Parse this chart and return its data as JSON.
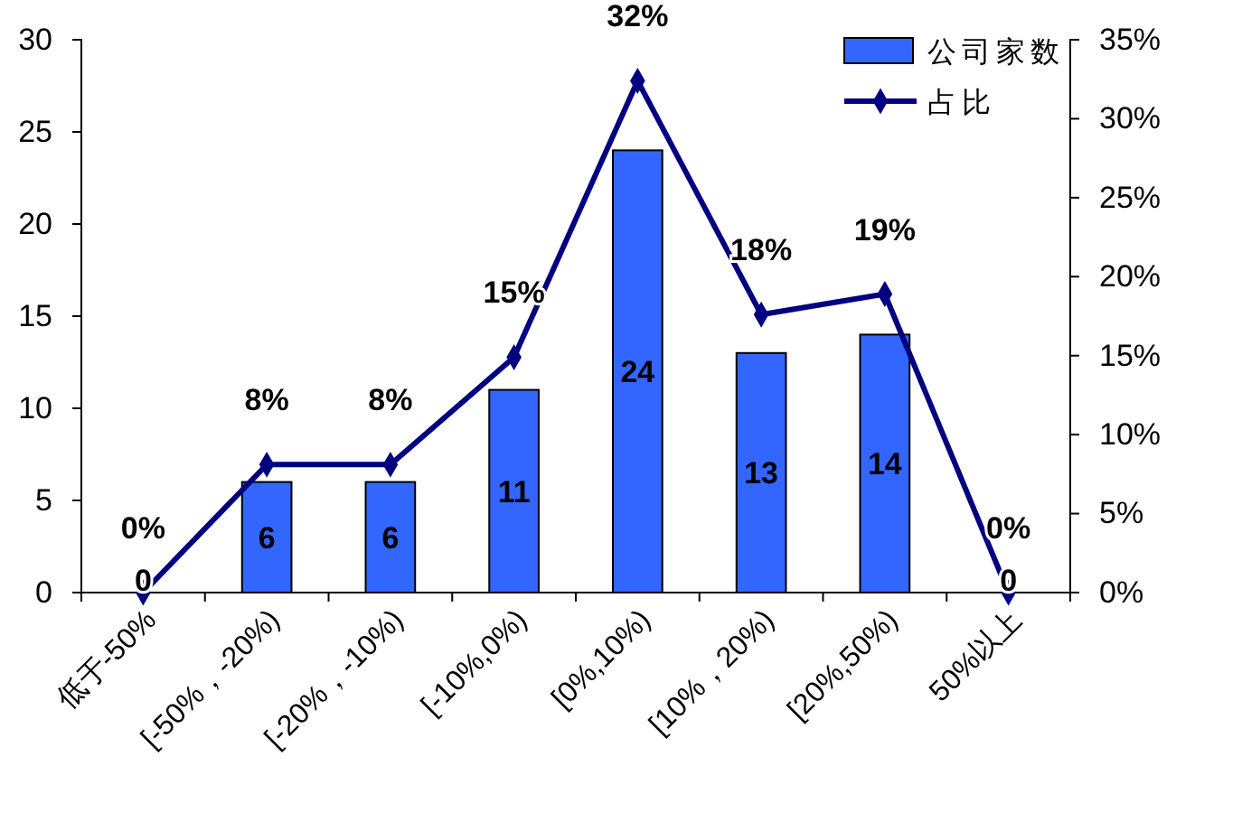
{
  "chart_data": {
    "type": "bar",
    "categories": [
      "低于-50%",
      "[-50%，-20%)",
      "[-20%，-10%)",
      "[-10%,0%)",
      "[0%,10%)",
      "[10%，20%)",
      "[20%,50%)",
      "50%以上"
    ],
    "series": [
      {
        "name": "公司家数",
        "color": "#3366ff",
        "values": [
          0,
          6,
          6,
          11,
          24,
          13,
          14,
          0
        ],
        "value_labels": [
          "0",
          "6",
          "6",
          "11",
          "24",
          "13",
          "14",
          "0"
        ]
      },
      {
        "name": "占比",
        "type": "line",
        "axis": "y2",
        "color": "#000080",
        "values": [
          0,
          8.1,
          8.1,
          14.9,
          32.4,
          17.6,
          18.9,
          0
        ],
        "value_labels": [
          "0%",
          "8%",
          "8%",
          "15%",
          "32%",
          "18%",
          "19%",
          "0%"
        ]
      }
    ],
    "ylim": [
      0,
      30
    ],
    "yticks": [
      0,
      5,
      10,
      15,
      20,
      25,
      30
    ],
    "y2lim": [
      0,
      35
    ],
    "y2ticks": [
      {
        "value": 0,
        "label": "0%"
      },
      {
        "value": 5,
        "label": "5%"
      },
      {
        "value": 10,
        "label": "10%"
      },
      {
        "value": 15,
        "label": "15%"
      },
      {
        "value": 20,
        "label": "20%"
      },
      {
        "value": 25,
        "label": "25%"
      },
      {
        "value": 30,
        "label": "30%"
      },
      {
        "value": 35,
        "label": "35%"
      }
    ],
    "legend": "top right",
    "marker": "diamond",
    "grid": false
  }
}
